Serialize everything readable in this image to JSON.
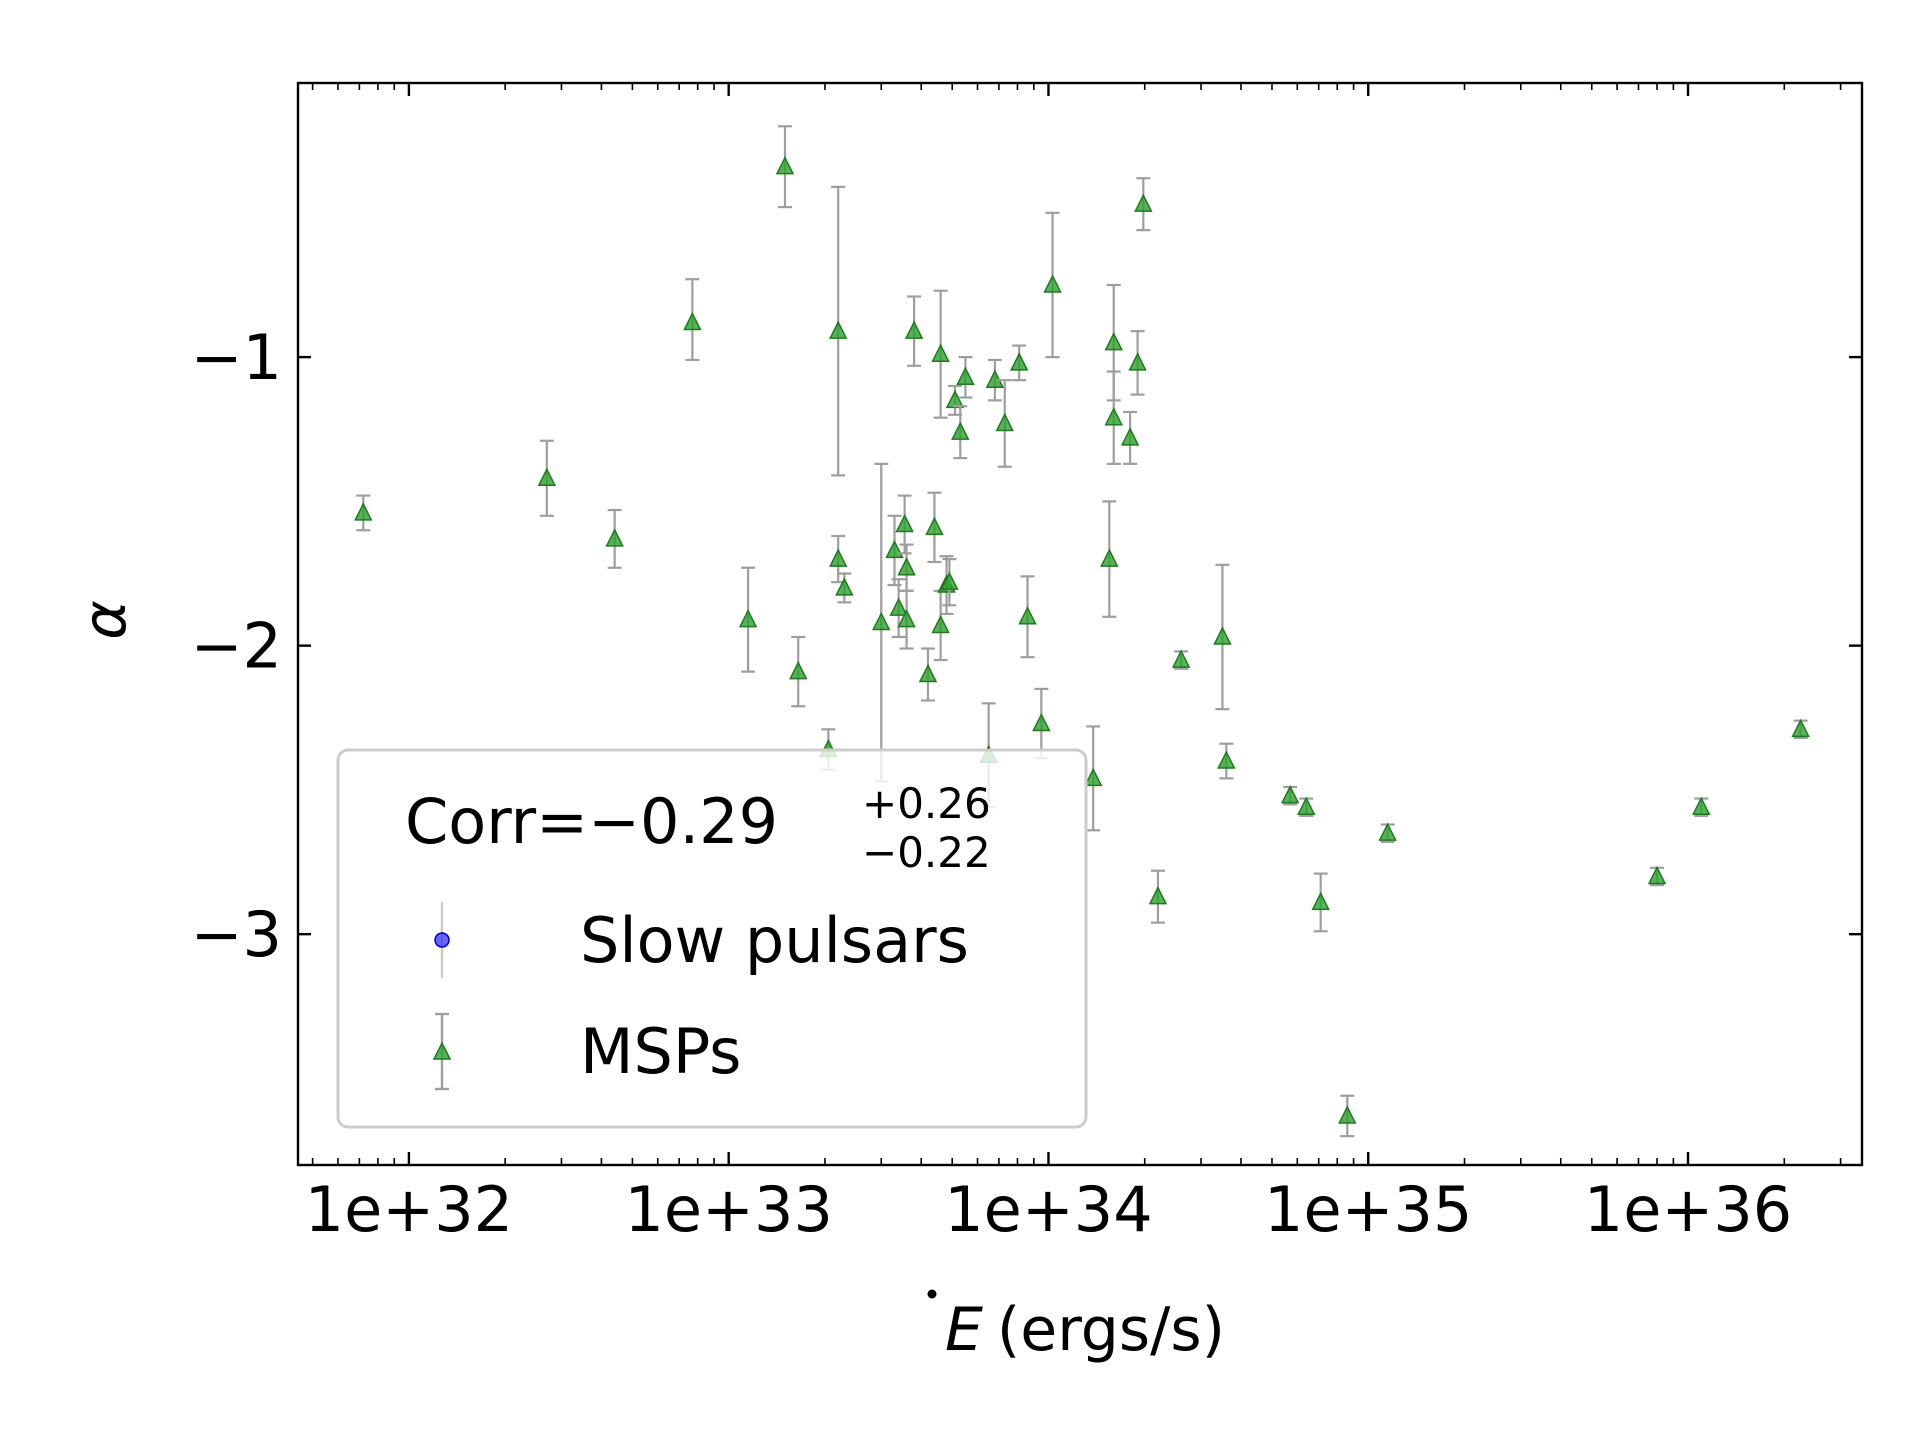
{
  "chart_data": {
    "type": "scatter",
    "xlabel_symbol": "E",
    "xlabel_units": "(ergs/s)",
    "ylabel": "α",
    "x_scale": "log",
    "xlim": [
      4.5e+31,
      3.5e+36
    ],
    "ylim": [
      -3.8,
      -0.05
    ],
    "x_ticks": [
      1e+32,
      1e+33,
      1e+34,
      1e+35,
      1e+36
    ],
    "x_tick_labels": [
      "1e+32",
      "1e+33",
      "1e+34",
      "1e+35",
      "1e+36"
    ],
    "y_ticks": [
      -1,
      -2,
      -3
    ],
    "y_tick_labels": [
      "−1",
      "−2",
      "−3"
    ],
    "legend": {
      "placement": "lower-left",
      "corr_prefix": "Corr=",
      "corr_value": "−0.29",
      "corr_plus": "+0.26",
      "corr_minus": "−0.22",
      "entries": [
        {
          "label": "Slow pulsars",
          "color": "#3333ff",
          "marker": "circle"
        },
        {
          "label": "MSPs",
          "color": "#2ca02c",
          "marker": "triangle"
        }
      ]
    },
    "colors": {
      "msp": "#2ca02c",
      "msp_edge": "#1f7a1f",
      "errorbar": "#9e9e9e"
    },
    "series": [
      {
        "name": "Slow pulsars",
        "x": [],
        "y": [],
        "err_lo": [],
        "err_hi": []
      },
      {
        "name": "MSPs",
        "x": [
          7.2e+31,
          2.7e+32,
          4.4e+32,
          7.7e+32,
          1.15e+33,
          1.5e+33,
          1.65e+33,
          2.05e+33,
          2.2e+33,
          2.2e+33,
          2.3e+33,
          3e+33,
          3.3e+33,
          3.4e+33,
          3.55e+33,
          3.6e+33,
          3.6e+33,
          3.8e+33,
          4.2e+33,
          4.4e+33,
          4.6e+33,
          4.6e+33,
          4.8e+33,
          4.9e+33,
          5.1e+33,
          5.3e+33,
          5.5e+33,
          6.5e+33,
          6.8e+33,
          7.3e+33,
          8.1e+33,
          8.6e+33,
          9.5e+33,
          1.03e+34,
          1.38e+34,
          1.55e+34,
          1.6e+34,
          1.6e+34,
          1.8e+34,
          1.9e+34,
          1.98e+34,
          2.2e+34,
          2.6e+34,
          3.5e+34,
          3.6e+34,
          5.7e+34,
          6.4e+34,
          7.1e+34,
          8.6e+34,
          1.15e+35,
          8e+35,
          1.1e+36,
          2.25e+36
        ],
        "y": [
          -1.54,
          -1.42,
          -1.63,
          -0.88,
          -1.91,
          -0.34,
          -2.09,
          -2.36,
          -1.7,
          -0.91,
          -1.8,
          -1.92,
          -1.67,
          -1.87,
          -1.58,
          -1.73,
          -1.91,
          -0.91,
          -2.1,
          -1.59,
          -0.99,
          -1.93,
          -1.79,
          -1.78,
          -1.15,
          -1.26,
          -1.07,
          -2.38,
          -1.08,
          -1.23,
          -1.02,
          -1.9,
          -2.27,
          -0.75,
          -2.46,
          -1.7,
          -1.21,
          -0.95,
          -1.28,
          -1.02,
          -0.47,
          -2.87,
          -2.05,
          -1.97,
          -2.4,
          -2.52,
          -2.56,
          -2.89,
          -3.63,
          -2.65,
          -2.8,
          -2.56,
          -2.29
        ],
        "err_lo": [
          0.06,
          0.13,
          0.1,
          0.13,
          0.18,
          0.14,
          0.12,
          0.07,
          0.08,
          0.5,
          0.05,
          0.55,
          0.12,
          0.1,
          0.1,
          0.08,
          0.1,
          0.12,
          0.09,
          0.12,
          0.22,
          0.12,
          0.1,
          0.08,
          0.05,
          0.09,
          0.07,
          0.18,
          0.07,
          0.15,
          0.06,
          0.14,
          0.12,
          0.25,
          0.18,
          0.2,
          0.16,
          0.2,
          0.09,
          0.11,
          0.09,
          0.09,
          0.03,
          0.25,
          0.06,
          0.03,
          0.03,
          0.1,
          0.07,
          0.03,
          0.03,
          0.03,
          0.03
        ],
        "err_hi": [
          0.06,
          0.13,
          0.1,
          0.15,
          0.18,
          0.14,
          0.12,
          0.07,
          0.08,
          0.5,
          0.05,
          0.55,
          0.12,
          0.1,
          0.1,
          0.08,
          0.1,
          0.12,
          0.09,
          0.12,
          0.22,
          0.12,
          0.1,
          0.08,
          0.05,
          0.09,
          0.07,
          0.18,
          0.07,
          0.15,
          0.06,
          0.14,
          0.12,
          0.25,
          0.18,
          0.2,
          0.16,
          0.2,
          0.09,
          0.11,
          0.09,
          0.09,
          0.03,
          0.25,
          0.06,
          0.03,
          0.03,
          0.1,
          0.07,
          0.03,
          0.03,
          0.03,
          0.03
        ]
      }
    ]
  }
}
